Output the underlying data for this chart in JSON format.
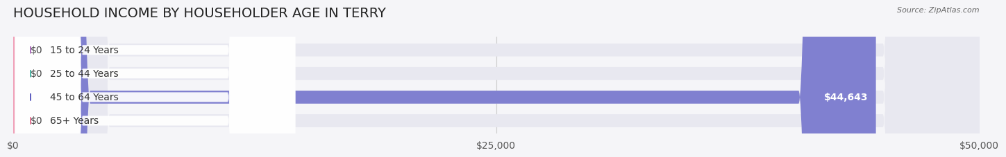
{
  "title": "HOUSEHOLD INCOME BY HOUSEHOLDER AGE IN TERRY",
  "source": "Source: ZipAtlas.com",
  "categories": [
    "15 to 24 Years",
    "25 to 44 Years",
    "45 to 64 Years",
    "65+ Years"
  ],
  "values": [
    0,
    0,
    44643,
    0
  ],
  "bar_colors": [
    "#c9a0dc",
    "#6dcbb8",
    "#8080d0",
    "#f0a0b8"
  ],
  "bar_bg_color": "#e8e8f0",
  "label_circle_colors": [
    "#b070c0",
    "#50b8a8",
    "#6060c0",
    "#e87898"
  ],
  "xlim": [
    0,
    50000
  ],
  "xticks": [
    0,
    25000,
    50000
  ],
  "xtick_labels": [
    "$0",
    "$25,000",
    "$50,000"
  ],
  "value_labels": [
    "$0",
    "$0",
    "$44,643",
    "$0"
  ],
  "background_color": "#f5f5f8",
  "title_fontsize": 14,
  "tick_fontsize": 10,
  "bar_label_fontsize": 10,
  "value_fontsize": 10
}
